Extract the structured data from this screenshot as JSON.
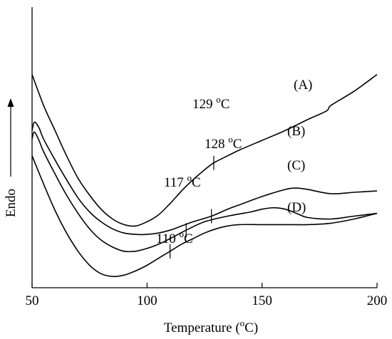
{
  "chart_data": {
    "type": "line",
    "xlabel_parts": [
      "Temperature (",
      "o",
      "C)"
    ],
    "ylabel": "Endo",
    "xlim": [
      50,
      200
    ],
    "xticks": [
      50,
      100,
      150,
      200
    ],
    "yaxis_ticks": false,
    "grid": false,
    "series": [
      {
        "name": "(A)",
        "x": [
          50,
          55,
          60,
          65,
          70,
          75,
          80,
          85,
          90,
          95,
          100,
          105,
          110,
          115,
          120,
          125,
          129,
          135,
          140,
          150,
          160,
          170,
          178,
          180,
          190,
          200
        ],
        "y": [
          76,
          65,
          56,
          47,
          39,
          33,
          28,
          24.5,
          22.5,
          22,
          23.5,
          26,
          30,
          34.5,
          38.5,
          42,
          44.5,
          47,
          49,
          52.5,
          56,
          60,
          63,
          65,
          70,
          76
        ]
      },
      {
        "name": "(B)",
        "x": [
          50,
          51,
          53,
          55,
          60,
          65,
          70,
          75,
          80,
          85,
          90,
          95,
          100,
          105,
          110,
          115,
          120,
          128,
          135,
          140,
          150,
          160,
          165,
          170,
          180,
          190,
          200
        ],
        "y": [
          56,
          59,
          57,
          53,
          45.5,
          38.5,
          32,
          27,
          23.5,
          21,
          19.5,
          19,
          19,
          19.5,
          20.5,
          22,
          23.5,
          25.5,
          28,
          29.5,
          32.5,
          35,
          35.5,
          35,
          33.5,
          34,
          34.5
        ]
      },
      {
        "name": "(C)",
        "x": [
          50,
          51,
          53,
          55,
          60,
          65,
          70,
          75,
          80,
          85,
          90,
          95,
          100,
          105,
          110,
          117,
          125,
          135,
          145,
          150,
          155,
          160,
          165,
          170,
          180,
          190,
          200
        ],
        "y": [
          53,
          55.5,
          52.5,
          48.5,
          40.5,
          33,
          26.5,
          21,
          17,
          14.5,
          13,
          13,
          14,
          15.5,
          17.5,
          20.5,
          23.5,
          25.5,
          27,
          28,
          28.5,
          28,
          26.5,
          25,
          24.5,
          25.5,
          26.5
        ]
      },
      {
        "name": "(D)",
        "x": [
          50,
          55,
          60,
          65,
          70,
          75,
          80,
          85,
          90,
          95,
          100,
          105,
          110,
          115,
          120,
          125,
          130,
          135,
          140,
          150,
          160,
          170,
          180,
          190,
          200
        ],
        "y": [
          47,
          37,
          27.5,
          19.5,
          13,
          8,
          5,
          4,
          4.5,
          6,
          8,
          10.5,
          13,
          15.5,
          17.5,
          19.5,
          21,
          22,
          22.5,
          22.5,
          22.5,
          22.5,
          23,
          24.5,
          26.5
        ]
      }
    ],
    "annotations": [
      {
        "value": "129",
        "sup": "o",
        "unit": "C",
        "series": "(A)",
        "x": 129
      },
      {
        "value": "128",
        "sup": "o",
        "unit": "C",
        "series": "(B)",
        "x": 128
      },
      {
        "value": "117",
        "sup": "o",
        "unit": "C",
        "series": "(C)",
        "x": 117
      },
      {
        "value": "110",
        "sup": "o",
        "unit": "C",
        "series": "(D)",
        "x": 110
      }
    ]
  }
}
